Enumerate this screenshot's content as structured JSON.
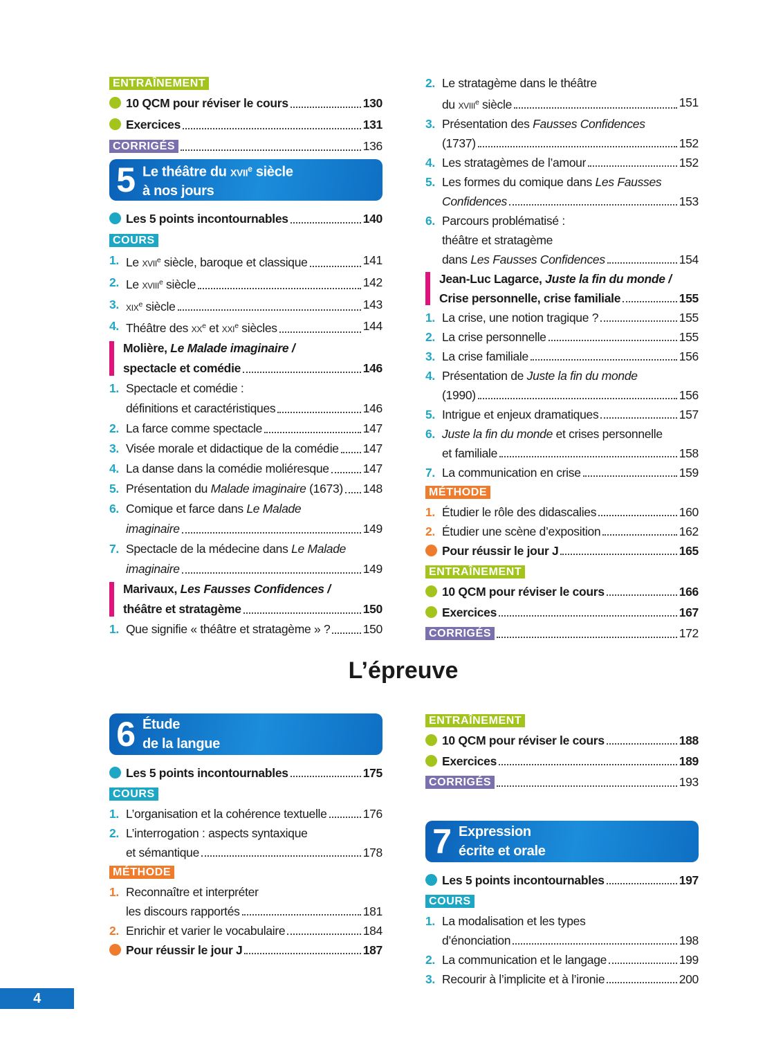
{
  "heading": "L’épreuve",
  "page_number": "4",
  "columns": [
    {
      "entries": [
        {
          "badge": "ENTRAÎNEMENT",
          "color": "#a3c41c"
        },
        {
          "bullet": "#a3c41c",
          "lines": [
            "10 QCM pour réviser le cours"
          ],
          "page": 130
        },
        {
          "bullet": "#a3c41c",
          "lines": [
            "Exercices"
          ],
          "page": 131
        },
        {
          "badge": "CORRIGÉS",
          "color": "#7b70ae",
          "page": 136
        },
        {
          "chapter": "5",
          "lines": [
            [
              "Le théâtre du ",
              {
                "text": "xvii",
                "style": "sc"
              },
              {
                "text": "e",
                "style": "sup"
              },
              " siècle"
            ],
            "à nos jours"
          ]
        },
        {
          "bullet": "#1ea7c4",
          "lines": [
            "Les 5 points incontournables"
          ],
          "page": 140
        },
        {
          "badge": "COURS",
          "color": "#1ea7c4"
        },
        {
          "num": "1.",
          "color": "#1ea7c4",
          "lines": [
            [
              "Le ",
              {
                "text": "xvii",
                "style": "sc"
              },
              {
                "text": "e",
                "style": "sup"
              },
              " siècle, baroque et classique"
            ]
          ],
          "page": 141
        },
        {
          "num": "2.",
          "color": "#1ea7c4",
          "lines": [
            [
              "Le ",
              {
                "text": "xviii",
                "style": "sc"
              },
              {
                "text": "e",
                "style": "sup"
              },
              " siècle"
            ]
          ],
          "page": 142
        },
        {
          "num": "3.",
          "color": "#1ea7c4",
          "lines": [
            [
              {
                "text": "xix",
                "style": "sc"
              },
              {
                "text": "e",
                "style": "sup"
              },
              " siècle"
            ]
          ],
          "page": 143
        },
        {
          "num": "4.",
          "color": "#1ea7c4",
          "lines": [
            [
              "Théâtre des ",
              {
                "text": "xx",
                "style": "sc"
              },
              {
                "text": "e",
                "style": "sup"
              },
              " et ",
              {
                "text": "xxi",
                "style": "sc"
              },
              {
                "text": "e",
                "style": "sup"
              },
              " siècles"
            ]
          ],
          "page": 144
        },
        {
          "bar": "#e0137c",
          "lines": [
            [
              "Molière, ",
              {
                "text": "Le Malade imaginaire /",
                "style": "i"
              }
            ],
            "spectacle et comédie"
          ],
          "page": 146
        },
        {
          "num": "1.",
          "color": "#1ea7c4",
          "lines": [
            "Spectacle et comédie :",
            "définitions et caractéristiques"
          ],
          "page": 146
        },
        {
          "num": "2.",
          "color": "#1ea7c4",
          "lines": [
            "La farce comme spectacle"
          ],
          "page": 147
        },
        {
          "num": "3.",
          "color": "#1ea7c4",
          "lines": [
            "Visée morale et didactique de la comédie"
          ],
          "page": 147
        },
        {
          "num": "4.",
          "color": "#1ea7c4",
          "lines": [
            "La danse dans la comédie moliéresque"
          ],
          "page": 147
        },
        {
          "num": "5.",
          "color": "#1ea7c4",
          "lines": [
            [
              "Présentation du ",
              {
                "text": "Malade imaginaire",
                "style": "i"
              },
              " (1673)"
            ]
          ],
          "page": 148
        },
        {
          "num": "6.",
          "color": "#1ea7c4",
          "lines": [
            [
              "Comique et farce dans ",
              {
                "text": "Le Malade",
                "style": "i"
              }
            ],
            [
              {
                "text": "imaginaire",
                "style": "i"
              }
            ]
          ],
          "page": 149
        },
        {
          "num": "7.",
          "color": "#1ea7c4",
          "lines": [
            [
              "Spectacle de la médecine dans ",
              {
                "text": "Le Malade",
                "style": "i"
              }
            ],
            [
              {
                "text": "imaginaire",
                "style": "i"
              }
            ]
          ],
          "page": 149
        },
        {
          "bar": "#e0137c",
          "lines": [
            [
              "Marivaux, ",
              {
                "text": "Les Fausses Confidences /",
                "style": "i"
              }
            ],
            "théâtre et stratagème"
          ],
          "page": 150
        },
        {
          "num": "1.",
          "color": "#1ea7c4",
          "lines": [
            "Que signifie « théâtre et stratagème » ?"
          ],
          "page": 150
        }
      ]
    },
    {
      "entries": [
        {
          "num": "2.",
          "color": "#1ea7c4",
          "lines": [
            "Le stratagème dans le théâtre",
            [
              "du ",
              {
                "text": "xviii",
                "style": "sc"
              },
              {
                "text": "e",
                "style": "sup"
              },
              " siècle"
            ]
          ],
          "page": 151
        },
        {
          "num": "3.",
          "color": "#1ea7c4",
          "lines": [
            [
              "Présentation des ",
              {
                "text": "Fausses Confidences",
                "style": "i"
              }
            ],
            "(1737)"
          ],
          "page": 152
        },
        {
          "num": "4.",
          "color": "#1ea7c4",
          "lines": [
            "Les stratagèmes de l’amour"
          ],
          "page": 152
        },
        {
          "num": "5.",
          "color": "#1ea7c4",
          "lines": [
            [
              "Les formes du comique dans ",
              {
                "text": "Les Fausses",
                "style": "i"
              }
            ],
            [
              {
                "text": "Confidences",
                "style": "i"
              }
            ]
          ],
          "page": 153
        },
        {
          "num": "6.",
          "color": "#1ea7c4",
          "lines": [
            "Parcours problématisé :",
            "théâtre et stratagème",
            [
              "dans ",
              {
                "text": "Les Fausses Confidences",
                "style": "i"
              }
            ]
          ],
          "page": 154
        },
        {
          "bar": "#e0137c",
          "lines": [
            [
              "Jean-Luc Lagarce, ",
              {
                "text": "Juste la fin du monde /",
                "style": "i"
              }
            ],
            "Crise personnelle, crise familiale"
          ],
          "page": 155
        },
        {
          "num": "1.",
          "color": "#1ea7c4",
          "lines": [
            "La crise, une notion tragique ?"
          ],
          "page": 155
        },
        {
          "num": "2.",
          "color": "#1ea7c4",
          "lines": [
            "La crise personnelle"
          ],
          "page": 155
        },
        {
          "num": "3.",
          "color": "#1ea7c4",
          "lines": [
            "La crise familiale"
          ],
          "page": 156
        },
        {
          "num": "4.",
          "color": "#1ea7c4",
          "lines": [
            [
              "Présentation de ",
              {
                "text": "Juste la fin du monde",
                "style": "i"
              }
            ],
            "(1990)"
          ],
          "page": 156
        },
        {
          "num": "5.",
          "color": "#1ea7c4",
          "lines": [
            "Intrigue et enjeux dramatiques"
          ],
          "page": 157
        },
        {
          "num": "6.",
          "color": "#1ea7c4",
          "lines": [
            [
              {
                "text": "Juste la fin du monde",
                "style": "i"
              },
              " et crises personnelle"
            ],
            "et familiale"
          ],
          "page": 158
        },
        {
          "num": "7.",
          "color": "#1ea7c4",
          "lines": [
            "La communication en crise"
          ],
          "page": 159
        },
        {
          "badge": "MÉTHODE",
          "color": "#ef7b2c"
        },
        {
          "num": "1.",
          "color": "#ef7b2c",
          "lines": [
            "Étudier le rôle des didascalies"
          ],
          "page": 160
        },
        {
          "num": "2.",
          "color": "#ef7b2c",
          "lines": [
            "Étudier une scène d’exposition"
          ],
          "page": 162
        },
        {
          "bullet": "#ef7b2c",
          "lines": [
            "Pour réussir le jour J"
          ],
          "page": 165
        },
        {
          "badge": "ENTRAÎNEMENT",
          "color": "#a3c41c"
        },
        {
          "bullet": "#a3c41c",
          "lines": [
            "10 QCM pour réviser le cours"
          ],
          "page": 166
        },
        {
          "bullet": "#a3c41c",
          "lines": [
            "Exercices"
          ],
          "page": 167
        },
        {
          "badge": "CORRIGÉS",
          "color": "#7b70ae",
          "page": 172
        }
      ]
    },
    {
      "entries": [
        {
          "chapter": "6",
          "lines": [
            "Étude",
            "de la langue"
          ]
        },
        {
          "bullet": "#1ea7c4",
          "lines": [
            "Les 5 points incontournables"
          ],
          "page": 175
        },
        {
          "badge": "COURS",
          "color": "#1ea7c4"
        },
        {
          "num": "1.",
          "color": "#1ea7c4",
          "lines": [
            "L’organisation et la cohérence textuelle"
          ],
          "page": 176
        },
        {
          "num": "2.",
          "color": "#1ea7c4",
          "lines": [
            "L’interrogation : aspects syntaxique",
            "et sémantique"
          ],
          "page": 178
        },
        {
          "badge": "MÉTHODE",
          "color": "#ef7b2c"
        },
        {
          "num": "1.",
          "color": "#ef7b2c",
          "lines": [
            "Reconnaître et interpréter",
            "les discours rapportés"
          ],
          "page": 181
        },
        {
          "num": "2.",
          "color": "#ef7b2c",
          "lines": [
            "Enrichir et varier le vocabulaire"
          ],
          "page": 184
        },
        {
          "bullet": "#ef7b2c",
          "lines": [
            "Pour réussir le jour J"
          ],
          "page": 187
        }
      ]
    },
    {
      "entries": [
        {
          "badge": "ENTRAÎNEMENT",
          "color": "#a3c41c"
        },
        {
          "bullet": "#a3c41c",
          "lines": [
            "10 QCM pour réviser le cours"
          ],
          "page": 188
        },
        {
          "bullet": "#a3c41c",
          "lines": [
            "Exercices"
          ],
          "page": 189
        },
        {
          "badge": "CORRIGÉS",
          "color": "#7b70ae",
          "page": 193
        }
      ]
    },
    {
      "entries": [
        {
          "chapter": "7",
          "lines": [
            "Expression",
            "écrite et orale"
          ]
        },
        {
          "bullet": "#1ea7c4",
          "lines": [
            "Les 5 points incontournables"
          ],
          "page": 197
        },
        {
          "badge": "COURS",
          "color": "#1ea7c4"
        },
        {
          "num": "1.",
          "color": "#1ea7c4",
          "lines": [
            "La modalisation et les types",
            "d’énonciation"
          ],
          "page": 198
        },
        {
          "num": "2.",
          "color": "#1ea7c4",
          "lines": [
            "La communication et le langage"
          ],
          "page": 199
        },
        {
          "num": "3.",
          "color": "#1ea7c4",
          "lines": [
            "Recourir à l’implicite et à l’ironie"
          ],
          "page": 200
        }
      ]
    }
  ]
}
